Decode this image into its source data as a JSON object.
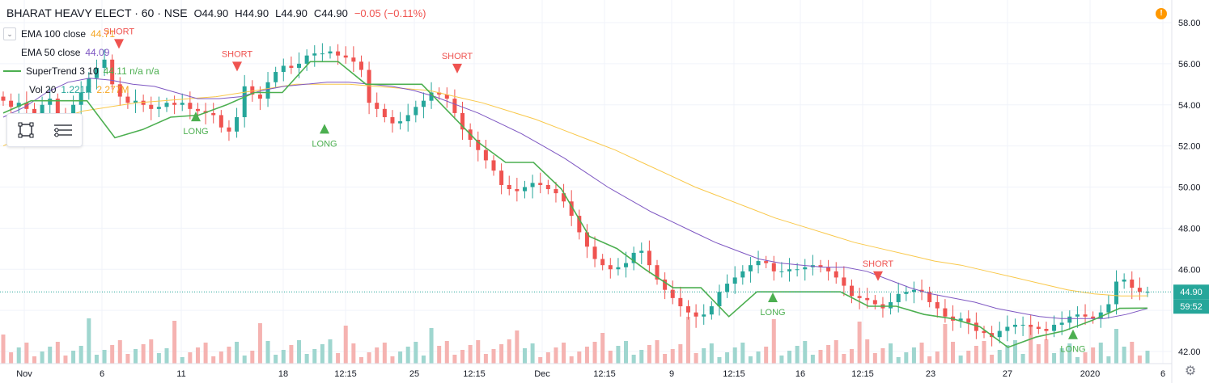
{
  "header": {
    "symbol": "BHARAT HEAVY ELECT · 60 · NSE",
    "open": "O44.90",
    "high": "H44.90",
    "low": "L44.90",
    "close": "C44.90",
    "change": "−0.05 (−0.11%)"
  },
  "legend": [
    {
      "label": "EMA 100 close",
      "value": "44.71",
      "color": "#f9c84a",
      "value_color": "#f5a623"
    },
    {
      "label": "EMA 50 close",
      "value": "44.09",
      "color": "#7e57c2",
      "value_color": "#7e57c2"
    },
    {
      "label": "SuperTrend 3 10",
      "value": "44.11  n/a  n/a",
      "color": "#4caf50",
      "value_color": "#4caf50"
    },
    {
      "label": "Vol 20",
      "value": "1.221K",
      "value2": "2.277M",
      "color": "#26a69a",
      "value_color": "#26a69a",
      "value2_color": "#f5a623"
    }
  ],
  "warning_icon": "exclamation-icon",
  "settings_icon": "gear-icon",
  "colors": {
    "up": "#26a69a",
    "down": "#ef5350",
    "vol_up": "#9fd6cf",
    "vol_down": "#f5b3b1",
    "ema100": "#f9c84a",
    "ema50": "#7e57c2",
    "st_up": "#4caf50",
    "st_down": "#f05350"
  },
  "chart_data": {
    "type": "line",
    "title": "BHARAT HEAVY ELECT · 60 · NSE",
    "x_ticks": [
      "Nov",
      "6",
      "11",
      "18",
      "12:15",
      "25",
      "12:15",
      "Dec",
      "12:15",
      "9",
      "12:15",
      "16",
      "12:15",
      "23",
      "27",
      "2020",
      "6"
    ],
    "y_ticks": [
      42.0,
      44.0,
      46.0,
      48.0,
      50.0,
      52.0,
      54.0,
      56.0,
      58.0
    ],
    "ylim": [
      41.5,
      58.6
    ],
    "last_price_label": "44.90",
    "countdown_label": "59:52",
    "series": [
      {
        "name": "Price",
        "values": [
          54.2,
          53.9,
          54.1,
          53.8,
          53.6,
          54.0,
          54.3,
          53.5,
          53.2,
          54.0,
          54.6,
          55.3,
          55.8,
          56.2,
          55.0,
          54.4,
          54.1,
          54.2,
          54.0,
          53.8,
          53.9,
          54.1,
          54.0,
          54.1,
          53.8,
          53.7,
          53.6,
          53.5,
          52.9,
          52.7,
          53.4,
          54.9,
          54.5,
          54.3,
          55.1,
          55.6,
          55.9,
          55.8,
          56.0,
          56.4,
          56.5,
          56.5,
          56.6,
          56.4,
          56.3,
          56.1,
          55.7,
          54.1,
          53.8,
          53.4,
          53.1,
          53.2,
          53.5,
          53.9,
          54.2,
          54.6,
          54.5,
          54.3,
          53.6,
          52.8,
          52.3,
          51.8,
          51.3,
          50.8,
          50.1,
          49.9,
          49.8,
          50.0,
          50.2,
          50.1,
          49.9,
          49.7,
          49.3,
          48.6,
          47.8,
          47.1,
          46.5,
          46.2,
          46.0,
          46.1,
          46.3,
          46.8,
          46.9,
          46.2,
          45.5,
          45.0,
          44.6,
          44.2,
          43.9,
          43.7,
          43.8,
          44.2,
          44.9,
          45.3,
          45.6,
          45.9,
          46.2,
          46.4,
          46.3,
          45.9,
          45.9,
          46.0,
          46.0,
          46.1,
          46.2,
          46.1,
          45.9,
          45.6,
          45.2,
          44.7,
          44.6,
          44.5,
          44.3,
          44.1,
          44.4,
          44.8,
          44.9,
          45.0,
          44.9,
          44.4,
          44.1,
          43.7,
          43.5,
          43.6,
          43.4,
          43.0,
          42.9,
          42.7,
          43.0,
          43.2,
          43.3,
          43.3,
          43.2,
          43.1,
          43.0,
          43.3,
          43.4,
          43.7,
          43.8,
          43.7,
          43.6,
          43.9,
          44.3,
          45.4,
          45.5,
          45.1,
          44.9,
          44.9
        ]
      },
      {
        "name": "EMA 50 close",
        "values": [
          53.4,
          53.9,
          54.6,
          55.1,
          55.3,
          55.2,
          55.0,
          54.9,
          54.6,
          54.3,
          54.3,
          54.4,
          54.7,
          54.9,
          55.0,
          55.1,
          55.1,
          55.0,
          54.9,
          54.7,
          54.4,
          54.0,
          53.6,
          53.1,
          52.6,
          52.0,
          51.4,
          50.7,
          50.0,
          49.4,
          48.8,
          48.3,
          47.8,
          47.3,
          46.9,
          46.5,
          46.3,
          46.2,
          46.1,
          46.1,
          45.9,
          45.5,
          45.1,
          44.8,
          44.6,
          44.4,
          44.1,
          43.9,
          43.7,
          43.6,
          43.6,
          43.6,
          43.8,
          44.09
        ]
      },
      {
        "name": "EMA 100 close",
        "values": [
          52.0,
          52.6,
          53.3,
          53.7,
          53.9,
          54.1,
          54.2,
          54.3,
          54.4,
          54.6,
          54.8,
          55.0,
          55.0,
          55.0,
          54.9,
          54.8,
          54.7,
          54.4,
          54.1,
          53.7,
          53.3,
          52.8,
          52.3,
          51.8,
          51.2,
          50.6,
          50.0,
          49.5,
          49.0,
          48.5,
          48.1,
          47.7,
          47.3,
          47.0,
          46.7,
          46.4,
          46.2,
          45.9,
          45.6,
          45.3,
          45.0,
          44.8,
          44.7,
          44.71
        ]
      },
      {
        "name": "SuperTrend 3 10",
        "values": [
          53.6,
          54.2,
          54.2,
          54.2,
          52.4,
          52.8,
          53.4,
          53.5,
          54.0,
          54.6,
          54.6,
          56.1,
          56.1,
          55.0,
          55.0,
          55.0,
          53.6,
          52.2,
          51.2,
          51.2,
          49.9,
          47.6,
          47.0,
          46.0,
          45.1,
          45.1,
          43.7,
          44.9,
          44.9,
          44.9,
          44.9,
          44.2,
          44.2,
          43.8,
          43.6,
          43.2,
          42.2,
          42.7,
          43.0,
          43.5,
          44.1,
          44.11
        ]
      }
    ],
    "signals": [
      {
        "label": "SHORT",
        "type": "short"
      },
      {
        "label": "LONG",
        "type": "long"
      },
      {
        "label": "SHORT",
        "type": "short"
      },
      {
        "label": "LONG",
        "type": "long"
      },
      {
        "label": "SHORT",
        "type": "short"
      },
      {
        "label": "LONG",
        "type": "long"
      },
      {
        "label": "SHORT",
        "type": "short"
      },
      {
        "label": "LONG",
        "type": "long"
      }
    ]
  }
}
